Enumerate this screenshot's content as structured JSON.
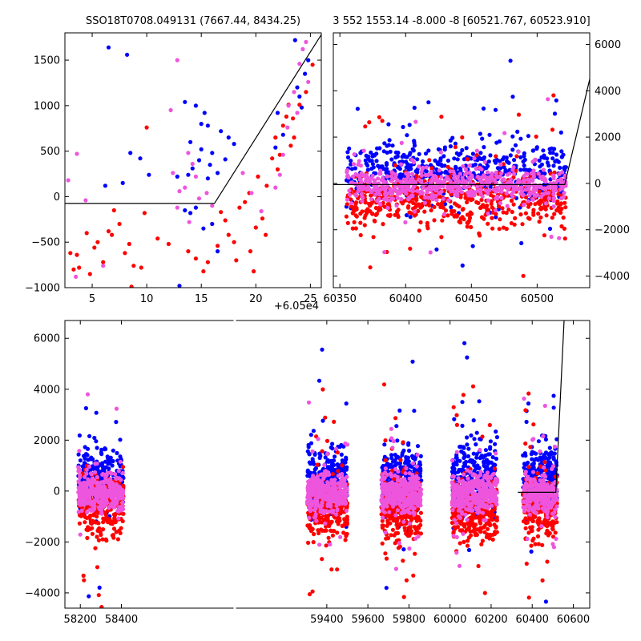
{
  "chart_data": [
    {
      "id": "zoom",
      "type": "scatter",
      "title": "SSO18T0708.049131 (7667.44, 8434.25)",
      "offset_label": "+6.05e4",
      "xlim": [
        2.5,
        26.0
      ],
      "ylim": [
        -1000,
        1800
      ],
      "xticks": [
        5,
        10,
        15,
        20,
        25
      ],
      "yticks": [
        -1000,
        -500,
        0,
        500,
        1000,
        1500
      ],
      "ytick_side": "left",
      "line": {
        "x": [
          2.5,
          16.2,
          26.0
        ],
        "y": [
          -75,
          -75,
          1780
        ]
      },
      "series": [
        {
          "color": "#0000ff",
          "points": [
            [
              6.5,
              1640
            ],
            [
              8.2,
              1560
            ],
            [
              13.5,
              1040
            ],
            [
              14.5,
              1000
            ],
            [
              15.3,
              920
            ],
            [
              15.0,
              800
            ],
            [
              15.6,
              780
            ],
            [
              16.8,
              720
            ],
            [
              17.5,
              650
            ],
            [
              18.0,
              580
            ],
            [
              14.0,
              600
            ],
            [
              15.0,
              520
            ],
            [
              16.0,
              480
            ],
            [
              17.2,
              410
            ],
            [
              15.8,
              350
            ],
            [
              14.2,
              310
            ],
            [
              13.8,
              240
            ],
            [
              16.5,
              260
            ],
            [
              8.5,
              480
            ],
            [
              9.4,
              420
            ],
            [
              7.8,
              150
            ],
            [
              6.2,
              120
            ],
            [
              10.2,
              240
            ],
            [
              12.8,
              220
            ],
            [
              13.5,
              -150
            ],
            [
              14.5,
              -120
            ],
            [
              14.0,
              -180
            ],
            [
              16.0,
              -300
            ],
            [
              15.2,
              -350
            ],
            [
              13.0,
              -980
            ],
            [
              16.5,
              -600
            ],
            [
              24.2,
              980
            ],
            [
              24.5,
              1350
            ],
            [
              24.8,
              1500
            ],
            [
              23.6,
              1720
            ],
            [
              22.5,
              680
            ],
            [
              22.0,
              920
            ],
            [
              21.8,
              540
            ],
            [
              23.8,
              1200
            ],
            [
              24.0,
              1100
            ],
            [
              14.8,
              400
            ],
            [
              15.6,
              200
            ]
          ]
        },
        {
          "color": "#ff0000",
          "points": [
            [
              3.0,
              -620
            ],
            [
              3.3,
              -800
            ],
            [
              3.8,
              -780
            ],
            [
              4.5,
              -400
            ],
            [
              4.8,
              -850
            ],
            [
              5.2,
              -560
            ],
            [
              6.0,
              -720
            ],
            [
              6.5,
              -380
            ],
            [
              7.0,
              -150
            ],
            [
              7.5,
              -300
            ],
            [
              8.0,
              -620
            ],
            [
              8.4,
              -520
            ],
            [
              8.6,
              -990
            ],
            [
              9.8,
              -180
            ],
            [
              9.5,
              -780
            ],
            [
              10.0,
              760
            ],
            [
              11.0,
              -460
            ],
            [
              13.8,
              -600
            ],
            [
              14.5,
              -680
            ],
            [
              15.6,
              -720
            ],
            [
              15.2,
              -820
            ],
            [
              16.8,
              -170
            ],
            [
              17.2,
              -260
            ],
            [
              17.5,
              -420
            ],
            [
              18.0,
              -500
            ],
            [
              18.5,
              -120
            ],
            [
              19.0,
              -60
            ],
            [
              19.4,
              40
            ],
            [
              19.8,
              -820
            ],
            [
              20.2,
              220
            ],
            [
              20.6,
              -240
            ],
            [
              20.9,
              -420
            ],
            [
              21.5,
              420
            ],
            [
              22.0,
              300
            ],
            [
              21.8,
              650
            ],
            [
              22.5,
              780
            ],
            [
              22.8,
              880
            ],
            [
              23.0,
              1010
            ],
            [
              23.2,
              560
            ],
            [
              23.5,
              650
            ],
            [
              24.0,
              1010
            ],
            [
              24.6,
              1150
            ],
            [
              25.2,
              1450
            ],
            [
              21.0,
              120
            ],
            [
              19.5,
              -600
            ],
            [
              18.2,
              -700
            ],
            [
              16.5,
              -540
            ],
            [
              6.8,
              -420
            ],
            [
              5.5,
              -500
            ],
            [
              3.6,
              -640
            ],
            [
              20.0,
              -340
            ],
            [
              22.2,
              460
            ],
            [
              23.4,
              860
            ],
            [
              8.8,
              -760
            ],
            [
              12.0,
              -520
            ]
          ]
        },
        {
          "color": "#ee55dd",
          "points": [
            [
              2.8,
              180
            ],
            [
              3.6,
              470
            ],
            [
              4.4,
              -40
            ],
            [
              12.8,
              1500
            ],
            [
              12.2,
              950
            ],
            [
              13.8,
              480
            ],
            [
              14.2,
              360
            ],
            [
              14.5,
              220
            ],
            [
              13.5,
              100
            ],
            [
              13.0,
              60
            ],
            [
              14.8,
              -20
            ],
            [
              15.5,
              40
            ],
            [
              12.8,
              -120
            ],
            [
              13.9,
              -280
            ],
            [
              16.0,
              -100
            ],
            [
              22.5,
              460
            ],
            [
              23.0,
              1000
            ],
            [
              23.5,
              1150
            ],
            [
              24.0,
              1460
            ],
            [
              24.3,
              1620
            ],
            [
              24.6,
              1700
            ],
            [
              22.2,
              240
            ],
            [
              21.8,
              100
            ],
            [
              20.5,
              -160
            ],
            [
              3.5,
              -880
            ],
            [
              6.0,
              -760
            ],
            [
              18.8,
              260
            ],
            [
              19.6,
              40
            ],
            [
              24.8,
              1260
            ],
            [
              23.8,
              920
            ],
            [
              22.9,
              760
            ],
            [
              12.4,
              260
            ]
          ]
        }
      ]
    },
    {
      "id": "recent",
      "type": "scatter",
      "title": "3 552 1553.14 -8.000 -8 [60521.767, 60523.910]",
      "xlim": [
        60345,
        60540
      ],
      "ylim": [
        -4500,
        6500
      ],
      "xticks": [
        60350,
        60400,
        60450,
        60500
      ],
      "yticks": [
        -4000,
        -2000,
        0,
        2000,
        4000,
        6000
      ],
      "ytick_side": "right",
      "line": {
        "x": [
          60345,
          60521,
          60540
        ],
        "y": [
          -50,
          -50,
          4500
        ]
      },
      "clouds": [
        {
          "color": "#0000ff",
          "x": [
            60355,
            60522
          ],
          "center": 600,
          "spread": 1100,
          "count": 520
        },
        {
          "color": "#ff0000",
          "x": [
            60355,
            60522
          ],
          "center": -700,
          "spread": 1100,
          "count": 520
        },
        {
          "color": "#ee55dd",
          "x": [
            60355,
            60522
          ],
          "center": -100,
          "spread": 700,
          "count": 560
        }
      ]
    },
    {
      "id": "full",
      "type": "scatter",
      "xlim": [
        58125,
        60680
      ],
      "ylim": [
        -4600,
        6700
      ],
      "xticks": [
        58200,
        58400,
        59400,
        59600,
        59800,
        60000,
        60200,
        60400,
        60600
      ],
      "yticks": [
        -4000,
        -2000,
        0,
        2000,
        4000,
        6000
      ],
      "ytick_side": "left",
      "line": {
        "x": [
          60330,
          60515,
          60555
        ],
        "y": [
          -50,
          -50,
          6700
        ]
      },
      "clouds": [
        {
          "color": "#0000ff",
          "x": [
            58190,
            58410
          ],
          "center": 500,
          "spread": 1100,
          "count": 260
        },
        {
          "color": "#ff0000",
          "x": [
            58190,
            58410
          ],
          "center": -600,
          "spread": 1100,
          "count": 260
        },
        {
          "color": "#ee55dd",
          "x": [
            58190,
            58410
          ],
          "center": -100,
          "spread": 700,
          "count": 320
        },
        {
          "color": "#0000ff",
          "x": [
            59305,
            59500
          ],
          "center": 500,
          "spread": 1100,
          "count": 260
        },
        {
          "color": "#ff0000",
          "x": [
            59305,
            59500
          ],
          "center": -700,
          "spread": 1100,
          "count": 260
        },
        {
          "color": "#ee55dd",
          "x": [
            59305,
            59500
          ],
          "center": -100,
          "spread": 700,
          "count": 320
        },
        {
          "color": "#0000ff",
          "x": [
            59665,
            59860
          ],
          "center": 500,
          "spread": 1100,
          "count": 280
        },
        {
          "color": "#ff0000",
          "x": [
            59665,
            59860
          ],
          "center": -700,
          "spread": 1100,
          "count": 280
        },
        {
          "color": "#ee55dd",
          "x": [
            59665,
            59860
          ],
          "center": -100,
          "spread": 700,
          "count": 340
        },
        {
          "color": "#0000ff",
          "x": [
            60010,
            60230
          ],
          "center": 600,
          "spread": 1100,
          "count": 300
        },
        {
          "color": "#ff0000",
          "x": [
            60010,
            60230
          ],
          "center": -800,
          "spread": 1100,
          "count": 300
        },
        {
          "color": "#ee55dd",
          "x": [
            60010,
            60230
          ],
          "center": -100,
          "spread": 700,
          "count": 360
        },
        {
          "color": "#0000ff",
          "x": [
            60355,
            60522
          ],
          "center": 600,
          "spread": 1100,
          "count": 220
        },
        {
          "color": "#ff0000",
          "x": [
            60355,
            60522
          ],
          "center": -700,
          "spread": 1100,
          "count": 220
        },
        {
          "color": "#ee55dd",
          "x": [
            60355,
            60522
          ],
          "center": -100,
          "spread": 700,
          "count": 260
        }
      ]
    }
  ]
}
